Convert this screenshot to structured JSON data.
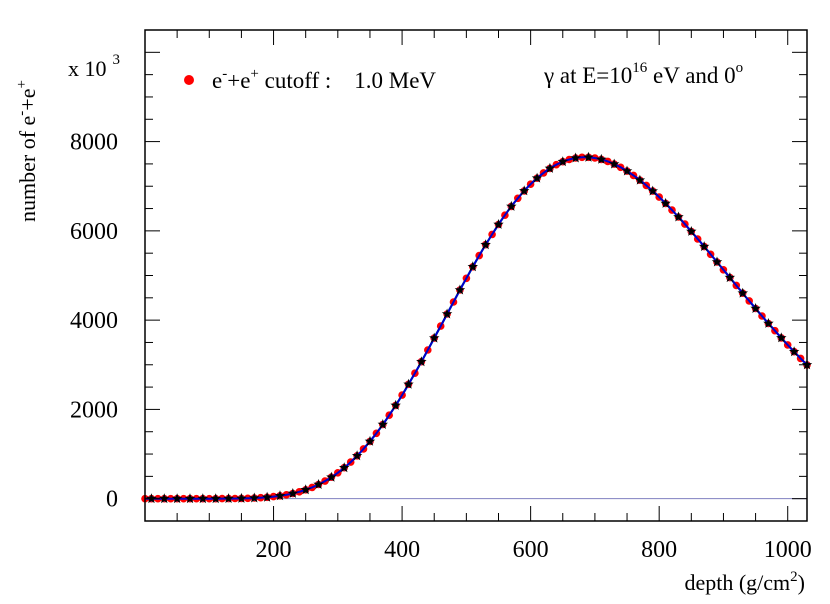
{
  "chart_data": {
    "type": "scatter",
    "title": {
      "prefix": "γ at E=10",
      "sup": "16",
      "mid": " eV and 0",
      "sup2": "o"
    },
    "xlabel": {
      "text": "depth (g/cm",
      "sup": "2",
      "end": ")"
    },
    "ylabel": {
      "text": "number of e",
      "sup1": "-",
      "mid": "+e",
      "sup2": "+"
    },
    "y_multiplier": {
      "text": "x 10",
      "sup": "3"
    },
    "legend": {
      "position": "top-left",
      "marker_color": "#ff0000",
      "parts": [
        "e",
        "-",
        "+e",
        "+",
        " cutoff :    1.0 MeV"
      ]
    },
    "xlim": [
      0,
      1030
    ],
    "ylim": [
      -500,
      10500
    ],
    "x_ticks": [
      200,
      400,
      600,
      800,
      1000
    ],
    "y_ticks": [
      0,
      2000,
      4000,
      6000,
      8000
    ],
    "baseline": 0,
    "shower": {
      "x_max": 685,
      "n_max": 7650,
      "lambda": 70,
      "x_end": 1030
    },
    "series": [
      {
        "marker": "line",
        "color": "#008000",
        "step": 5
      },
      {
        "marker": "line",
        "color": "#00a0a0",
        "step": 5
      },
      {
        "marker": "circle",
        "color": "#ff0000",
        "step": 10
      },
      {
        "marker": "circle",
        "color": "#7030a0",
        "step": 20
      },
      {
        "marker": "line",
        "color": "#0000cc",
        "step": 5
      },
      {
        "marker": "star",
        "color": "#000000",
        "step": 20
      }
    ],
    "colors": {
      "axis": "#000000",
      "baseline": "#8080c0"
    }
  }
}
